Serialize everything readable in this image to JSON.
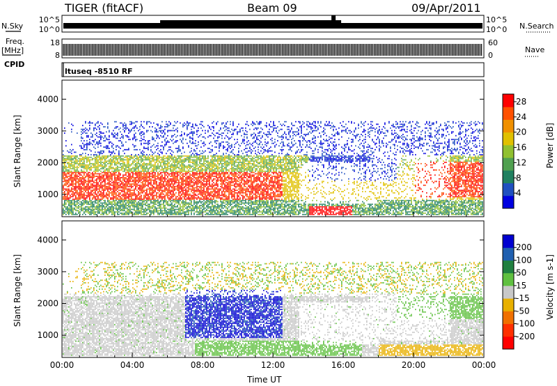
{
  "header": {
    "radar": "TIGER (fitACF)",
    "beam": "Beam 09",
    "date": "09/Apr/2011"
  },
  "strip_labels": {
    "nsky": "N.Sky",
    "nsky_ticks": [
      "10^5",
      "10^0"
    ],
    "nsearch": "N.Search",
    "freq": "Freq.",
    "freq_unit": "[MHz]",
    "freq_ticks": [
      "18",
      "8"
    ],
    "nave": "Nave",
    "nave_ticks": [
      "60",
      "0"
    ],
    "cpid": "CPID",
    "cpid_value": "ltuseq -8510 RF"
  },
  "chart_data": [
    {
      "type": "heatmap",
      "panel": "power",
      "ylabel": "Slant Range [km]",
      "xlabel": "Time UT",
      "x_range": [
        "00:00",
        "00:00"
      ],
      "x_ticks": [
        "00:00",
        "04:00",
        "08:00",
        "12:00",
        "16:00",
        "20:00",
        "00:00"
      ],
      "y_ticks": [
        1000,
        2000,
        3000,
        4000
      ],
      "ylim": [
        300,
        4600
      ],
      "colorbar": {
        "label": "Power [dB]",
        "ticks": [
          4,
          8,
          12,
          16,
          20,
          24,
          28
        ],
        "range": [
          0,
          30
        ],
        "colors": [
          "#0000e0",
          "#2050c0",
          "#208060",
          "#50a050",
          "#90c030",
          "#e0c000",
          "#f09000",
          "#ff5000",
          "#ff0000"
        ]
      }
    },
    {
      "type": "heatmap",
      "panel": "velocity",
      "ylabel": "Slant Range [km]",
      "xlabel": "Time UT",
      "x_ticks": [
        "00:00",
        "04:00",
        "08:00",
        "12:00",
        "16:00",
        "20:00",
        "00:00"
      ],
      "y_ticks": [
        1000,
        2000,
        3000,
        4000
      ],
      "ylim": [
        300,
        4600
      ],
      "colorbar": {
        "label": "Velocity [m s-1]",
        "ticks": [
          200,
          100,
          50,
          15,
          -15,
          -50,
          -100,
          -200
        ],
        "colors": [
          "#0000d0",
          "#2060b0",
          "#208040",
          "#60c040",
          "#c8c8c8",
          "#e8b000",
          "#f07000",
          "#ff3000",
          "#ff0000"
        ]
      }
    }
  ]
}
